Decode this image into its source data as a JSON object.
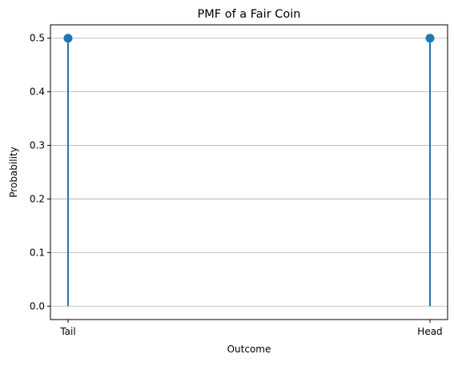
{
  "chart_data": {
    "type": "stem",
    "title": "PMF of a Fair Coin",
    "xlabel": "Outcome",
    "ylabel": "Probability",
    "categories": [
      "Tail",
      "Head"
    ],
    "series": [
      {
        "values": [
          0.5,
          0.5
        ]
      }
    ],
    "ylim": [
      -0.025,
      0.525
    ],
    "yticks": [
      "0.0",
      "0.1",
      "0.2",
      "0.3",
      "0.4",
      "0.5"
    ],
    "grid": "y",
    "colors": {
      "stem": "#1f77b4",
      "grid": "#b0b0b0",
      "axis": "#000000"
    }
  }
}
